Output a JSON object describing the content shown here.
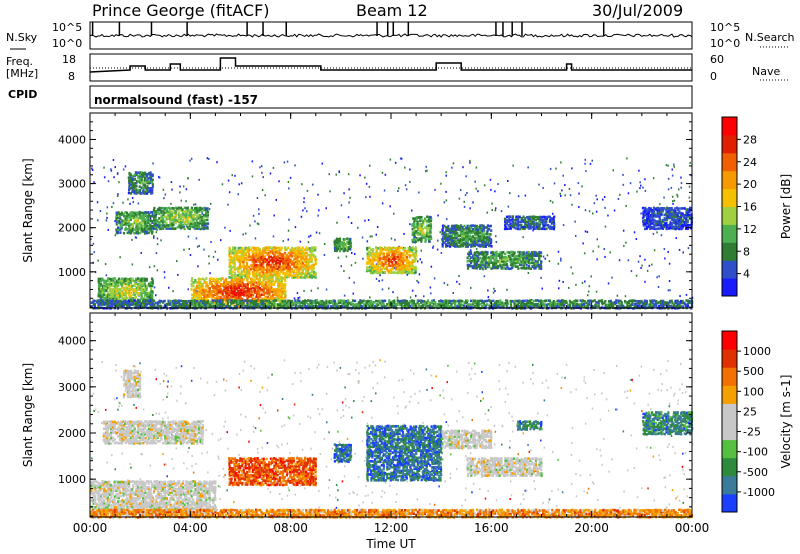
{
  "header": {
    "station": "Prince George (fitACF)",
    "beam": "Beam 12",
    "date": "30/Jul/2009"
  },
  "panels": {
    "nsky": {
      "label": "N.Sky",
      "tick_top": "10^5",
      "tick_bottom": "10^0"
    },
    "nsearch": {
      "label": "N.Search",
      "tick_top": "10^5",
      "tick_bottom": "10^0"
    },
    "freq": {
      "label_line1": "Freq.",
      "label_line2": "[MHz]",
      "tick_top": "18",
      "tick_bottom": "8"
    },
    "nave": {
      "label": "Nave",
      "tick_top": "60",
      "tick_bottom": "0"
    },
    "cpid": {
      "label": "CPID",
      "value": "normalsound (fast) -157"
    }
  },
  "chart_data": [
    {
      "type": "heatmap",
      "name": "power-panel",
      "ylabel": "Slant Range [km]",
      "xlabel": "Time UT",
      "x_ticks": [
        "00:00",
        "04:00",
        "08:00",
        "12:00",
        "16:00",
        "20:00",
        "00:00"
      ],
      "x_hours": [
        0,
        4,
        8,
        12,
        16,
        20,
        24
      ],
      "y_ticks": [
        1000,
        2000,
        3000,
        4000
      ],
      "ylim": [
        180,
        4600
      ],
      "colorbar": {
        "label": "Power [dB]",
        "ticks": [
          "4",
          "8",
          "12",
          "16",
          "20",
          "24",
          "28"
        ],
        "colors": [
          "#1a1aff",
          "#2f4fc9",
          "#2e7d32",
          "#4caf50",
          "#a0d040",
          "#f5c000",
          "#f59a00",
          "#f06000",
          "#e02000",
          "#ff0000"
        ]
      },
      "regions": [
        {
          "t0": 0.3,
          "t1": 2.5,
          "r0": 300,
          "r1": 900,
          "level": 0.55
        },
        {
          "t0": 1.0,
          "t1": 2.5,
          "r0": 1900,
          "r1": 2400,
          "level": 0.45
        },
        {
          "t0": 1.5,
          "t1": 2.5,
          "r0": 2800,
          "r1": 3300,
          "level": 0.35
        },
        {
          "t0": 2.5,
          "t1": 4.7,
          "r0": 2000,
          "r1": 2500,
          "level": 0.5
        },
        {
          "t0": 4.0,
          "t1": 7.8,
          "r0": 250,
          "r1": 900,
          "level": 0.95
        },
        {
          "t0": 5.5,
          "t1": 9.0,
          "r0": 900,
          "r1": 1600,
          "level": 0.9
        },
        {
          "t0": 9.7,
          "t1": 10.4,
          "r0": 1500,
          "r1": 1800,
          "level": 0.45
        },
        {
          "t0": 11.0,
          "t1": 13.0,
          "r0": 1000,
          "r1": 1600,
          "level": 0.85
        },
        {
          "t0": 12.8,
          "t1": 13.6,
          "r0": 1700,
          "r1": 2300,
          "level": 0.5
        },
        {
          "t0": 14.0,
          "t1": 16.0,
          "r0": 1600,
          "r1": 2100,
          "level": 0.35
        },
        {
          "t0": 15.0,
          "t1": 18.0,
          "r0": 1100,
          "r1": 1500,
          "level": 0.4
        },
        {
          "t0": 16.5,
          "t1": 18.5,
          "r0": 2000,
          "r1": 2300,
          "level": 0.25
        },
        {
          "t0": 22.0,
          "t1": 24.0,
          "r0": 2000,
          "r1": 2500,
          "level": 0.2
        },
        {
          "t0": 0.0,
          "t1": 24.0,
          "r0": 200,
          "r1": 400,
          "level": 0.35
        }
      ]
    },
    {
      "type": "heatmap",
      "name": "velocity-panel",
      "ylabel": "Slant Range [km]",
      "xlabel": "Time UT",
      "x_ticks": [
        "00:00",
        "04:00",
        "08:00",
        "12:00",
        "16:00",
        "20:00",
        "00:00"
      ],
      "x_hours": [
        0,
        4,
        8,
        12,
        16,
        20,
        24
      ],
      "y_ticks": [
        1000,
        2000,
        3000,
        4000
      ],
      "ylim": [
        180,
        4600
      ],
      "colorbar": {
        "label": "Velocity [m s-1]",
        "ticks": [
          "1000",
          "500",
          "100",
          "25",
          "-25",
          "-100",
          "-500",
          "-1000"
        ],
        "colors": [
          "#1a3fff",
          "#3a7a9a",
          "#2e8b3e",
          "#55c040",
          "#c8c8c8",
          "#c8c8c8",
          "#f5a000",
          "#f07000",
          "#e03000",
          "#ff0000"
        ]
      },
      "regions": [
        {
          "t0": 0.0,
          "t1": 5.0,
          "r0": 300,
          "r1": 1000,
          "level": 0.5
        },
        {
          "t0": 0.5,
          "t1": 4.5,
          "r0": 1800,
          "r1": 2300,
          "level": 0.5
        },
        {
          "t0": 1.3,
          "t1": 2.0,
          "r0": 2800,
          "r1": 3400,
          "level": 0.5
        },
        {
          "t0": 5.5,
          "t1": 9.0,
          "r0": 900,
          "r1": 1500,
          "level": 0.8
        },
        {
          "t0": 9.7,
          "t1": 10.4,
          "r0": 1400,
          "r1": 1800,
          "level": 0.15
        },
        {
          "t0": 11.0,
          "t1": 14.0,
          "r0": 1000,
          "r1": 2200,
          "level": 0.15
        },
        {
          "t0": 14.0,
          "t1": 16.0,
          "r0": 1700,
          "r1": 2100,
          "level": 0.5
        },
        {
          "t0": 15.0,
          "t1": 18.0,
          "r0": 1100,
          "r1": 1500,
          "level": 0.5
        },
        {
          "t0": 17.0,
          "t1": 18.0,
          "r0": 2100,
          "r1": 2300,
          "level": 0.2
        },
        {
          "t0": 22.0,
          "t1": 24.0,
          "r0": 2000,
          "r1": 2500,
          "level": 0.2
        },
        {
          "t0": 0.0,
          "t1": 24.0,
          "r0": 200,
          "r1": 380,
          "level": 0.7
        }
      ]
    }
  ]
}
